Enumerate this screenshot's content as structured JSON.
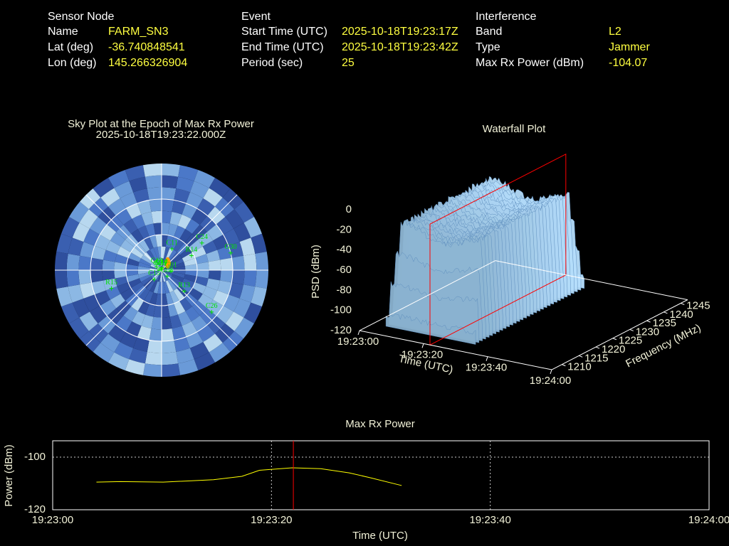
{
  "header": {
    "sections": [
      {
        "title": "Sensor Node",
        "rows": [
          [
            "Name",
            "FARM_SN3"
          ],
          [
            "Lat (deg)",
            "-36.740848541"
          ],
          [
            "Lon (deg)",
            "145.266326904"
          ]
        ]
      },
      {
        "title": "Event",
        "rows": [
          [
            "Start Time (UTC)",
            "2025-10-18T19:23:17Z"
          ],
          [
            "End Time (UTC)",
            "2025-10-18T19:23:42Z"
          ],
          [
            "Period (sec)",
            "25"
          ]
        ]
      },
      {
        "title": "Interference",
        "rows": [
          [
            "Band",
            "L2"
          ],
          [
            "Type",
            "Jammer"
          ],
          [
            "Max Rx Power (dBm)",
            "-104.07"
          ]
        ]
      }
    ]
  },
  "chart_data": [
    {
      "type": "polar",
      "title": "Sky Plot at the Epoch of Max Rx Power",
      "subtitle": "2025-10-18T19:23:22.000Z",
      "rlim": [
        90,
        0
      ],
      "rticks": [
        0,
        30,
        60
      ],
      "sat_color": "#00e000",
      "max_power_direction": {
        "az": 40,
        "el": 8,
        "color": "#ff9900"
      },
      "satellites": [
        {
          "name": "C14",
          "az": 359,
          "el": 2
        },
        {
          "name": "R17",
          "az": 20,
          "el": 1
        },
        {
          "name": "C11",
          "az": 26,
          "el": 20
        },
        {
          "name": "G31",
          "az": 318,
          "el": 1
        },
        {
          "name": "C13",
          "az": 304,
          "el": 5
        },
        {
          "name": "G09",
          "az": 290,
          "el": 2
        },
        {
          "name": "C15",
          "az": 219,
          "el": 10
        },
        {
          "name": "R13",
          "az": 133,
          "el": 26
        },
        {
          "name": "G08",
          "az": 138,
          "el": 7
        },
        {
          "name": "G01",
          "az": 96,
          "el": 8
        },
        {
          "name": "C24",
          "az": 56,
          "el": 41
        },
        {
          "name": "R14",
          "az": 64,
          "el": 28
        },
        {
          "name": "G30",
          "az": 76,
          "el": 60
        },
        {
          "name": "R15",
          "az": 250,
          "el": 45
        },
        {
          "name": "C26",
          "az": 130,
          "el": 55
        }
      ]
    },
    {
      "type": "surface3d",
      "title": "Waterfall Plot",
      "xlabel": "Time (UTC)",
      "ylabel": "Frequency (MHz)",
      "zlabel": "PSD (dBm)",
      "xlim": [
        0,
        60
      ],
      "xticks": [
        {
          "value": 0,
          "label": "19:23:00"
        },
        {
          "value": 20,
          "label": "19:23:20"
        },
        {
          "value": 40,
          "label": "19:23:40"
        },
        {
          "value": 60,
          "label": "19:24:00"
        }
      ],
      "ylim": [
        1207,
        1247
      ],
      "yticks": [
        1210,
        1215,
        1220,
        1225,
        1230,
        1235,
        1240,
        1245
      ],
      "zlim": [
        -120,
        0
      ],
      "zticks": [
        0,
        -20,
        -40,
        -60,
        -80,
        -100,
        -120
      ],
      "marker_x": 22,
      "marker_color": "#ff0000"
    },
    {
      "type": "line",
      "title": "Max Rx Power",
      "xlabel": "Time (UTC)",
      "ylabel": "Power (dBm)",
      "color": "#ffff00",
      "x": [
        4,
        6.2,
        10.1,
        14.7,
        17.3,
        18.9,
        21.9,
        24.5,
        27.1,
        29,
        31.9
      ],
      "values": [
        -109.5,
        -109.3,
        -109.5,
        -108.6,
        -107.3,
        -105,
        -104.07,
        -104.4,
        -106,
        -107.8,
        -110.8
      ],
      "xlim": [
        0,
        60
      ],
      "xticks": [
        {
          "value": 0,
          "label": "19:23:00"
        },
        {
          "value": 20,
          "label": "19:23:20"
        },
        {
          "value": 40,
          "label": "19:23:40"
        },
        {
          "value": 60,
          "label": "19:24:00"
        }
      ],
      "ylim": [
        -120,
        -93.8
      ],
      "yticks": [
        -120,
        -100
      ],
      "grid": true,
      "marker_x": 22,
      "marker_color": "#ff0000"
    }
  ]
}
